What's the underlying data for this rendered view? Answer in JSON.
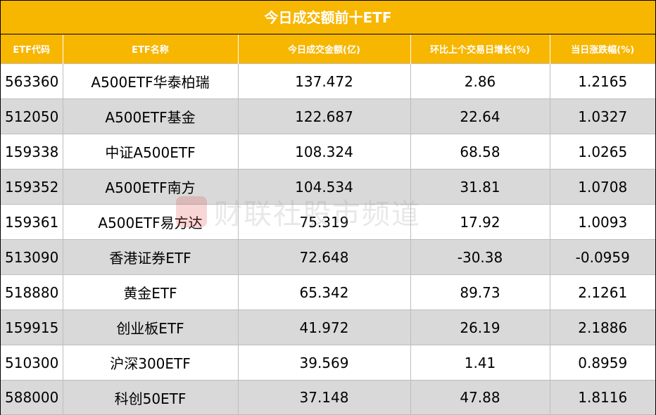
{
  "chart_data": {
    "type": "table",
    "title": "今日成交额前十ETF",
    "columns": [
      "ETF代码",
      "ETF名称",
      "今日成交金额(亿)",
      "环比上个交易日增长(%)",
      "当日涨跌幅(%)"
    ],
    "rows": [
      [
        "563360",
        "A500ETF华泰柏瑞",
        "137.472",
        "2.86",
        "1.2165"
      ],
      [
        "512050",
        "A500ETF基金",
        "122.687",
        "22.64",
        "1.0327"
      ],
      [
        "159338",
        "中证A500ETF",
        "108.324",
        "68.58",
        "1.0265"
      ],
      [
        "159352",
        "A500ETF南方",
        "104.534",
        "31.81",
        "1.0708"
      ],
      [
        "159361",
        "A500ETF易方达",
        "75.319",
        "17.92",
        "1.0093"
      ],
      [
        "513090",
        "香港证券ETF",
        "72.648",
        "-30.38",
        "-0.0959"
      ],
      [
        "518880",
        "黄金ETF",
        "65.342",
        "89.73",
        "2.1261"
      ],
      [
        "159915",
        "创业板ETF",
        "41.972",
        "26.19",
        "2.1886"
      ],
      [
        "510300",
        "沪深300ETF",
        "39.569",
        "1.41",
        "0.8959"
      ],
      [
        "588000",
        "科创50ETF",
        "37.148",
        "47.88",
        "1.8116"
      ]
    ]
  },
  "watermark": "财联社股市频道",
  "colors": {
    "header_bg": "#f7b600",
    "header_text": "#ffffff",
    "stripe_bg": "#d9d9d9"
  }
}
